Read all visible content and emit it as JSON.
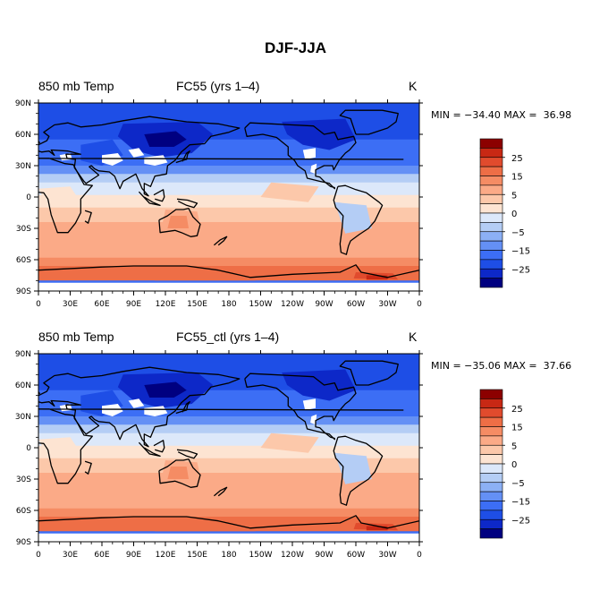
{
  "page": {
    "title": "DJF-JJA"
  },
  "colors": {
    "levels": [
      "#000080",
      "#0d28c8",
      "#1e4ee6",
      "#3c6ef5",
      "#6490f5",
      "#8cb0f5",
      "#b4cdf5",
      "#dce8fa",
      "#fde4d2",
      "#fcc8aa",
      "#fbaa87",
      "#f58c64",
      "#ee6e46",
      "#e14b2d",
      "#c82814",
      "#8c0000"
    ],
    "land_mask": "#ffffff",
    "coast": "#000000"
  },
  "panels": [
    {
      "left_title": "850 mb Temp",
      "center_title": "FC55 (yrs 1–4)",
      "units": "K",
      "stats": "MIN = −34.40 MAX =  36.98"
    },
    {
      "left_title": "850 mb Temp",
      "center_title": "FC55_ctl (yrs 1–4)",
      "units": "K",
      "stats": "MIN = −35.06 MAX =  37.66"
    }
  ],
  "chart_data": [
    {
      "type": "heatmap",
      "title": "850 mb Temp",
      "variant": "FC55 (yrs 1–4)",
      "units": "K",
      "min": -34.4,
      "max": 36.98,
      "x_ticks": [
        "0",
        "30E",
        "60E",
        "90E",
        "120E",
        "150E",
        "180",
        "150W",
        "120W",
        "90W",
        "60W",
        "30W",
        "0"
      ],
      "y_ticks": [
        "90N",
        "60N",
        "30N",
        "0",
        "30S",
        "60S",
        "90S"
      ],
      "xlim": [
        0,
        360
      ],
      "ylim": [
        -90,
        90
      ],
      "colorbar_labels": [
        "25",
        "15",
        "5",
        "0",
        "−5",
        "−15",
        "−25"
      ],
      "colorbar_levels": [
        -35,
        -30,
        -25,
        -20,
        -15,
        -10,
        -5,
        -2.5,
        0,
        2.5,
        5,
        10,
        15,
        20,
        25,
        30,
        35
      ]
    },
    {
      "type": "heatmap",
      "title": "850 mb Temp",
      "variant": "FC55_ctl (yrs 1–4)",
      "units": "K",
      "min": -35.06,
      "max": 37.66,
      "x_ticks": [
        "0",
        "30E",
        "60E",
        "90E",
        "120E",
        "150E",
        "180",
        "150W",
        "120W",
        "90W",
        "60W",
        "30W",
        "0"
      ],
      "y_ticks": [
        "90N",
        "60N",
        "30N",
        "0",
        "30S",
        "60S",
        "90S"
      ],
      "xlim": [
        0,
        360
      ],
      "ylim": [
        -90,
        90
      ],
      "colorbar_labels": [
        "25",
        "15",
        "5",
        "0",
        "−5",
        "−15",
        "−25"
      ],
      "colorbar_levels": [
        -35,
        -30,
        -25,
        -20,
        -15,
        -10,
        -5,
        -2.5,
        0,
        2.5,
        5,
        10,
        15,
        20,
        25,
        30,
        35
      ]
    }
  ]
}
